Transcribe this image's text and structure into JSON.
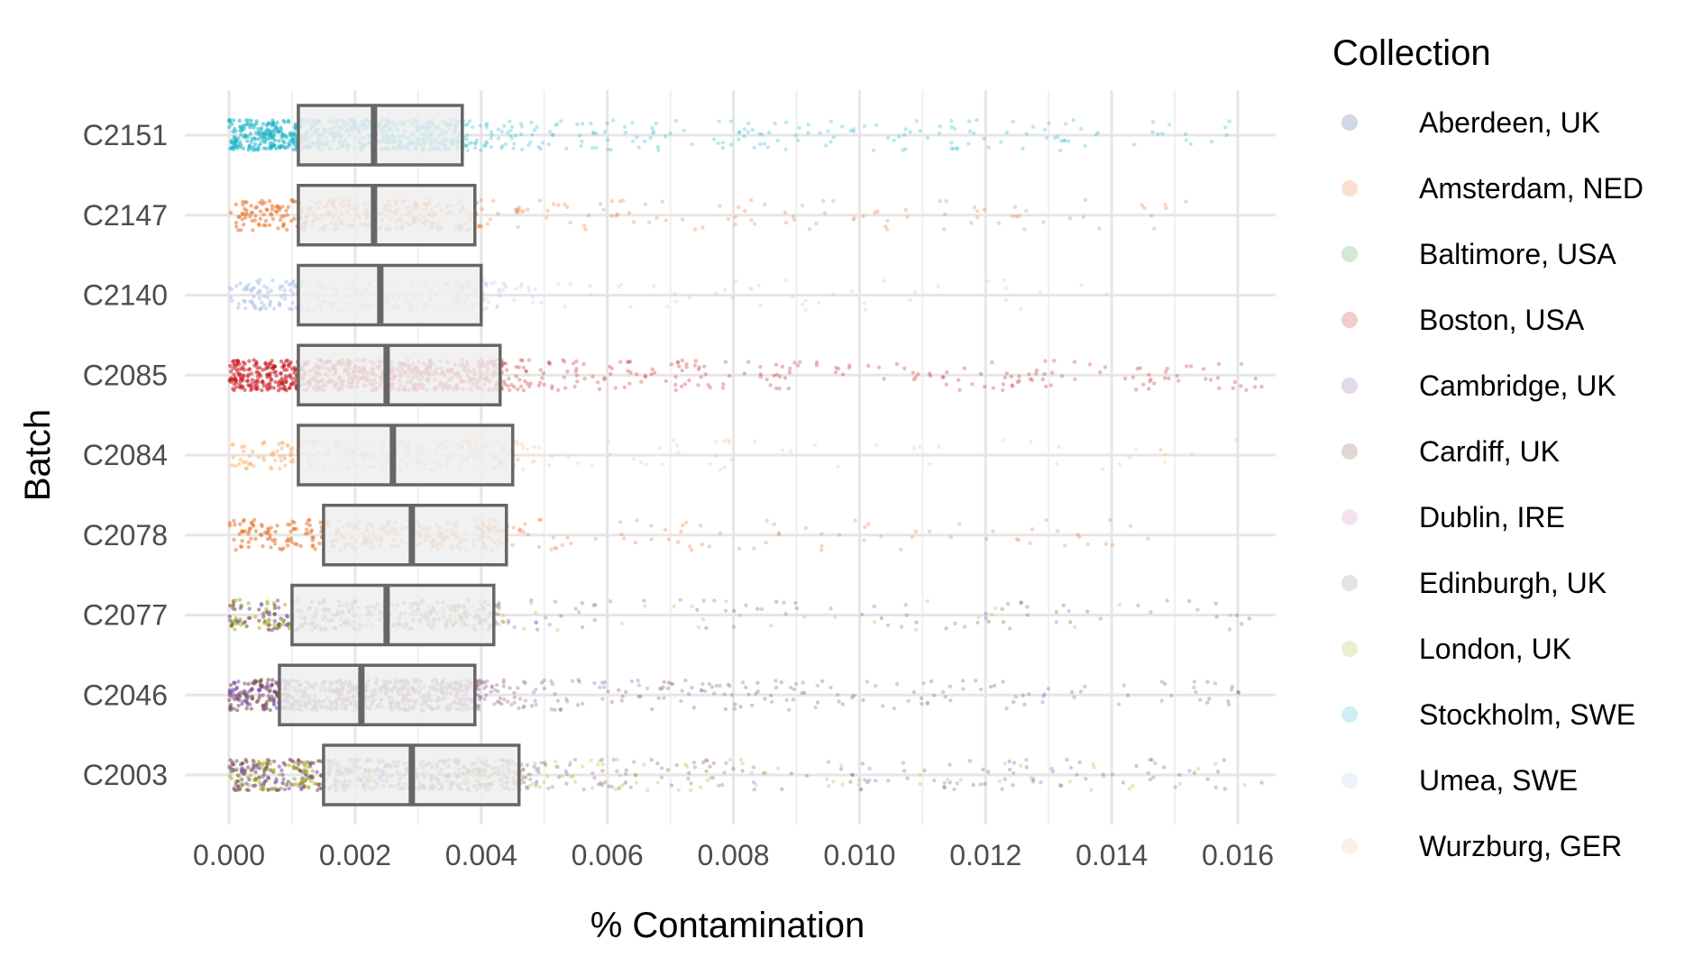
{
  "chart_data": {
    "type": "box+jitter",
    "xlabel": "% Contamination",
    "ylabel": "Batch",
    "xlim": [
      -8e-05,
      0.0166
    ],
    "x_ticks": [
      0.0,
      0.002,
      0.004,
      0.006,
      0.008,
      0.01,
      0.012,
      0.014,
      0.016
    ],
    "x_tick_labels": [
      "0.000",
      "0.002",
      "0.004",
      "0.006",
      "0.008",
      "0.010",
      "0.012",
      "0.014",
      "0.016"
    ],
    "categories": [
      "C2003",
      "C2046",
      "C2077",
      "C2078",
      "C2084",
      "C2085",
      "C2140",
      "C2147",
      "C2151"
    ],
    "grid": true,
    "legend": {
      "title": "Collection",
      "position": "right",
      "entries": [
        {
          "label": "Aberdeen, UK",
          "color": "#1f4e8c"
        },
        {
          "label": "Amsterdam, NED",
          "color": "#e8722a"
        },
        {
          "label": "Baltimore, USA",
          "color": "#2e9a3e"
        },
        {
          "label": "Boston, USA",
          "color": "#c8161d"
        },
        {
          "label": "Cambridge, UK",
          "color": "#7a54a6"
        },
        {
          "label": "Cardiff, UK",
          "color": "#7b4a42"
        },
        {
          "label": "Dublin, IRE",
          "color": "#e070c8"
        },
        {
          "label": "Edinburgh, UK",
          "color": "#7f7f7f"
        },
        {
          "label": "London, UK",
          "color": "#a8b520"
        },
        {
          "label": "Stockholm, SWE",
          "color": "#1bb5c8"
        },
        {
          "label": "Umea, SWE",
          "color": "#aec4ea"
        },
        {
          "label": "Wurzburg, GER",
          "color": "#f8b880"
        }
      ]
    },
    "boxes": [
      {
        "batch": "C2003",
        "q1": 0.0015,
        "median": 0.0029,
        "q3": 0.0046,
        "point_colors": [
          "#a8b520",
          "#7a54a6",
          "#7b4a42"
        ],
        "point_count": 900,
        "max": 0.0165
      },
      {
        "batch": "C2046",
        "q1": 0.0008,
        "median": 0.0021,
        "q3": 0.0039,
        "point_colors": [
          "#7a54a6",
          "#7b4a42"
        ],
        "point_count": 900,
        "max": 0.0162
      },
      {
        "batch": "C2077",
        "q1": 0.001,
        "median": 0.0025,
        "q3": 0.0042,
        "point_colors": [
          "#7a54a6",
          "#7b4a42",
          "#a8b520"
        ],
        "point_count": 500,
        "max": 0.0162
      },
      {
        "batch": "C2078",
        "q1": 0.0015,
        "median": 0.0029,
        "q3": 0.0044,
        "point_colors": [
          "#e8722a"
        ],
        "point_count": 380,
        "max": 0.0152
      },
      {
        "batch": "C2084",
        "q1": 0.0011,
        "median": 0.0026,
        "q3": 0.0045,
        "point_colors": [
          "#f8b880"
        ],
        "point_count": 320,
        "max": 0.0162
      },
      {
        "batch": "C2085",
        "q1": 0.0011,
        "median": 0.0025,
        "q3": 0.0043,
        "point_colors": [
          "#c8161d"
        ],
        "point_count": 900,
        "max": 0.0165
      },
      {
        "batch": "C2140",
        "q1": 0.0011,
        "median": 0.0024,
        "q3": 0.004,
        "point_colors": [
          "#aec4ea"
        ],
        "point_count": 300,
        "max": 0.014
      },
      {
        "batch": "C2147",
        "q1": 0.0011,
        "median": 0.0023,
        "q3": 0.0039,
        "point_colors": [
          "#e8722a"
        ],
        "point_count": 420,
        "max": 0.0155
      },
      {
        "batch": "C2151",
        "q1": 0.0011,
        "median": 0.0023,
        "q3": 0.0037,
        "point_colors": [
          "#1bb5c8"
        ],
        "point_count": 900,
        "max": 0.016
      }
    ]
  }
}
